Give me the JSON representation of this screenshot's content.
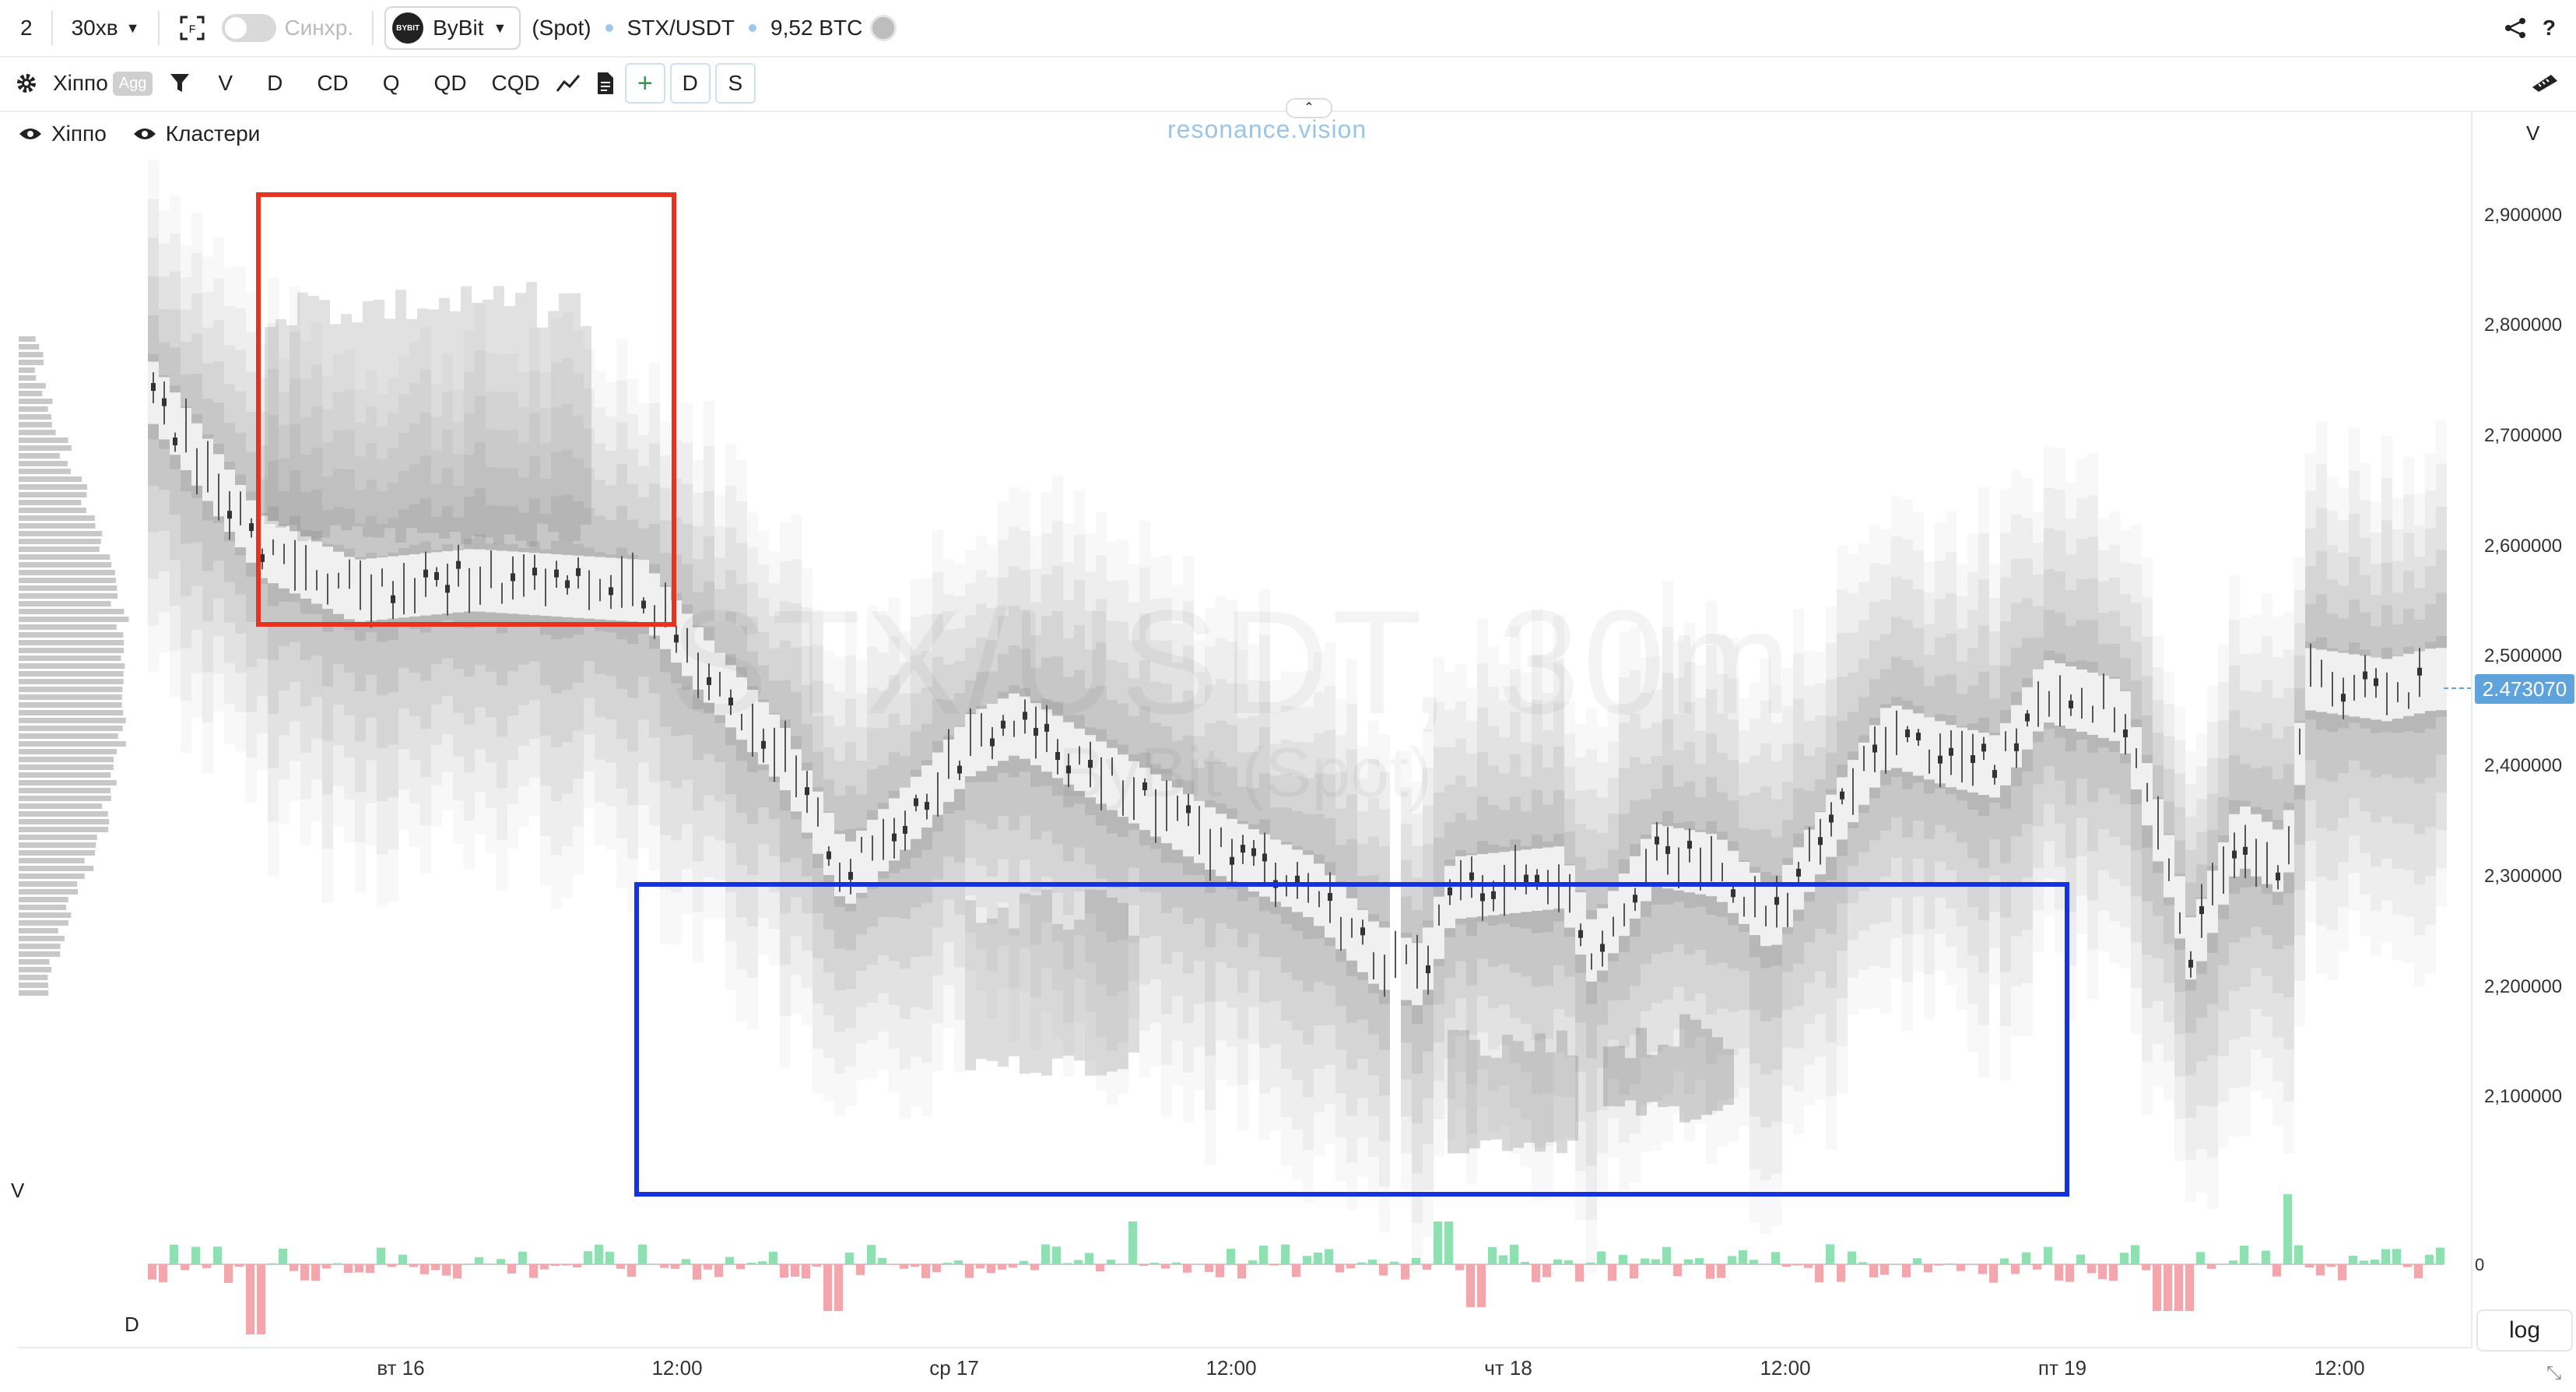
{
  "topbar": {
    "layout_count": "2",
    "timeframe": "30хв",
    "sync_label": "Синхр.",
    "exchange": "ByBit",
    "exchange_logo_text": "BYBIT",
    "market": "(Spot)",
    "symbol": "STX/USDT",
    "volume": "9,52 BTC",
    "help": "?"
  },
  "toolbar": {
    "indicator": "Хіппо",
    "agg": "Agg",
    "buttons": [
      "V",
      "D",
      "CD",
      "Q",
      "QD",
      "CQD"
    ],
    "plus": "+",
    "d_btn": "D",
    "s_btn": "S"
  },
  "chart": {
    "legend": [
      "Хіппо",
      "Кластери"
    ],
    "watermark_title": "STX/USDT, 30m",
    "watermark_sub": "ByBit (Spot)",
    "brand": "resonance.vision",
    "v_label_top": "V",
    "v_label_left": "V",
    "d_label": "D",
    "zero_label": "0",
    "log_button": "log",
    "current_price": "2.473070",
    "price_ticks": [
      "2,900000",
      "2,800000",
      "2,700000",
      "2,600000",
      "2,500000",
      "2,400000",
      "2,300000",
      "2,200000",
      "2,100000"
    ],
    "time_ticks": [
      "вт 16",
      "12:00",
      "ср 17",
      "12:00",
      "чт 18",
      "12:00",
      "пт 19",
      "12:00"
    ],
    "colors": {
      "highlight_red": "#e8321f",
      "highlight_blue": "#1432e0",
      "delta_pos": "#8fe0b0",
      "delta_neg": "#f4a6ad",
      "price_tag": "#5fa3dc"
    }
  }
}
